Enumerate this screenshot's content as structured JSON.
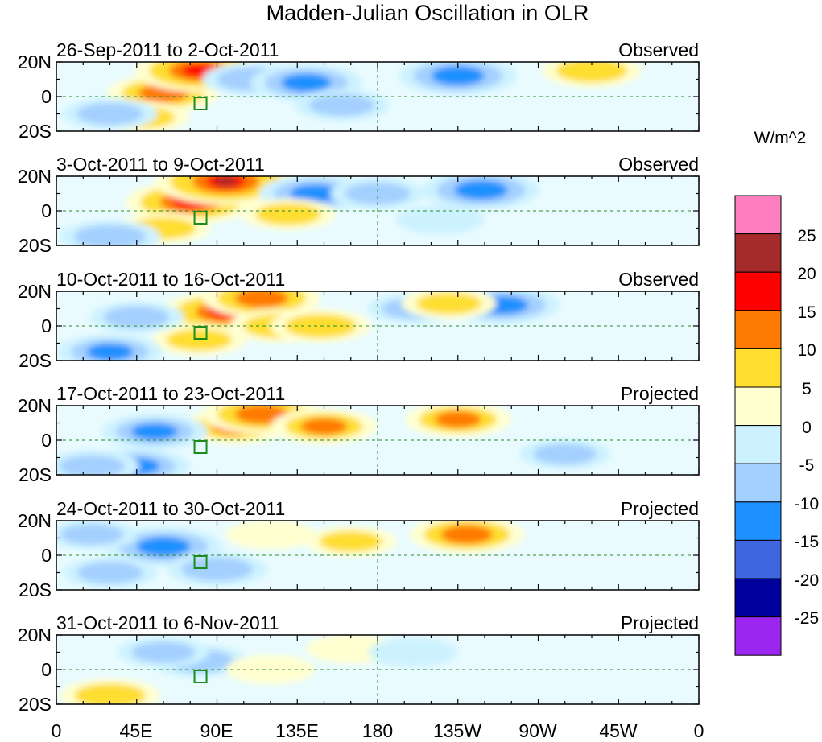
{
  "title": "Madden-Julian Oscillation in OLR",
  "colorbar": {
    "units_label": "W/m^2",
    "colors": [
      "#9a26f0",
      "#00009c",
      "#3d66e0",
      "#1e90ff",
      "#a4d0ff",
      "#cdf2ff",
      "#ffffd0",
      "#ffde30",
      "#ff7a00",
      "#ff0000",
      "#a52a2a",
      "#ff7ec0"
    ],
    "labels": [
      "25",
      "20",
      "15",
      "10",
      "5",
      "0",
      "-5",
      "-10",
      "-15",
      "-20",
      "-25"
    ]
  },
  "axes": {
    "y_ticks": [
      "20N",
      "0",
      "20S"
    ],
    "x_ticks": [
      "0",
      "45E",
      "90E",
      "135E",
      "180",
      "135W",
      "90W",
      "45W",
      "0"
    ]
  },
  "panels": [
    {
      "date_range": "26-Sep-2011 to 2-Oct-2011",
      "type": "Observed"
    },
    {
      "date_range": "3-Oct-2011 to 9-Oct-2011",
      "type": "Observed"
    },
    {
      "date_range": "10-Oct-2011 to 16-Oct-2011",
      "type": "Observed"
    },
    {
      "date_range": "17-Oct-2011 to 23-Oct-2011",
      "type": "Projected"
    },
    {
      "date_range": "24-Oct-2011 to 30-Oct-2011",
      "type": "Projected"
    },
    {
      "date_range": "31-Oct-2011 to 6-Nov-2011",
      "type": "Projected"
    }
  ],
  "anomalies": [
    [
      {
        "lon": 60,
        "lat": 2,
        "value": 12
      },
      {
        "lon": 80,
        "lat": 15,
        "value": 18
      },
      {
        "lon": 48,
        "lat": -12,
        "value": 6
      },
      {
        "lon": 110,
        "lat": 10,
        "value": -8
      },
      {
        "lon": 140,
        "lat": 8,
        "value": -12
      },
      {
        "lon": 160,
        "lat": -5,
        "value": -6
      },
      {
        "lon": 225,
        "lat": 12,
        "value": -14
      },
      {
        "lon": 300,
        "lat": 15,
        "value": 8
      },
      {
        "lon": 30,
        "lat": -10,
        "value": -6
      }
    ],
    [
      {
        "lon": 75,
        "lat": 5,
        "value": 18
      },
      {
        "lon": 95,
        "lat": 17,
        "value": 22
      },
      {
        "lon": 60,
        "lat": -10,
        "value": 6
      },
      {
        "lon": 145,
        "lat": 10,
        "value": -12
      },
      {
        "lon": 130,
        "lat": -2,
        "value": 6
      },
      {
        "lon": 238,
        "lat": 12,
        "value": -14
      },
      {
        "lon": 180,
        "lat": 10,
        "value": -6
      },
      {
        "lon": 30,
        "lat": -15,
        "value": -8
      },
      {
        "lon": 215,
        "lat": -5,
        "value": -4
      }
    ],
    [
      {
        "lon": 95,
        "lat": 8,
        "value": 18
      },
      {
        "lon": 115,
        "lat": 16,
        "value": 14
      },
      {
        "lon": 125,
        "lat": 0,
        "value": 8
      },
      {
        "lon": 80,
        "lat": -8,
        "value": 6
      },
      {
        "lon": 148,
        "lat": 0,
        "value": 8
      },
      {
        "lon": 30,
        "lat": -15,
        "value": -10
      },
      {
        "lon": 45,
        "lat": 5,
        "value": -6
      },
      {
        "lon": 250,
        "lat": 12,
        "value": -13
      },
      {
        "lon": 200,
        "lat": 10,
        "value": -5
      },
      {
        "lon": 220,
        "lat": 13,
        "value": 6
      }
    ],
    [
      {
        "lon": 100,
        "lat": 8,
        "value": 10
      },
      {
        "lon": 115,
        "lat": 15,
        "value": 14
      },
      {
        "lon": 150,
        "lat": 8,
        "value": 10
      },
      {
        "lon": 55,
        "lat": 5,
        "value": -10
      },
      {
        "lon": 45,
        "lat": -15,
        "value": -10
      },
      {
        "lon": 225,
        "lat": 12,
        "value": 10
      },
      {
        "lon": 20,
        "lat": -15,
        "value": -6
      },
      {
        "lon": 285,
        "lat": -8,
        "value": -5
      }
    ],
    [
      {
        "lon": 60,
        "lat": 5,
        "value": -14
      },
      {
        "lon": 90,
        "lat": -8,
        "value": -8
      },
      {
        "lon": 230,
        "lat": 12,
        "value": 13
      },
      {
        "lon": 120,
        "lat": 12,
        "value": 4
      },
      {
        "lon": 165,
        "lat": 8,
        "value": 5
      },
      {
        "lon": 30,
        "lat": -10,
        "value": -6
      },
      {
        "lon": 20,
        "lat": 12,
        "value": -5
      }
    ],
    [
      {
        "lon": 80,
        "lat": 5,
        "value": -7
      },
      {
        "lon": 60,
        "lat": 10,
        "value": -5
      },
      {
        "lon": 165,
        "lat": 12,
        "value": 4
      },
      {
        "lon": 200,
        "lat": 10,
        "value": -4
      },
      {
        "lon": 30,
        "lat": -15,
        "value": 8
      },
      {
        "lon": 120,
        "lat": 0,
        "value": 4
      }
    ]
  ]
}
